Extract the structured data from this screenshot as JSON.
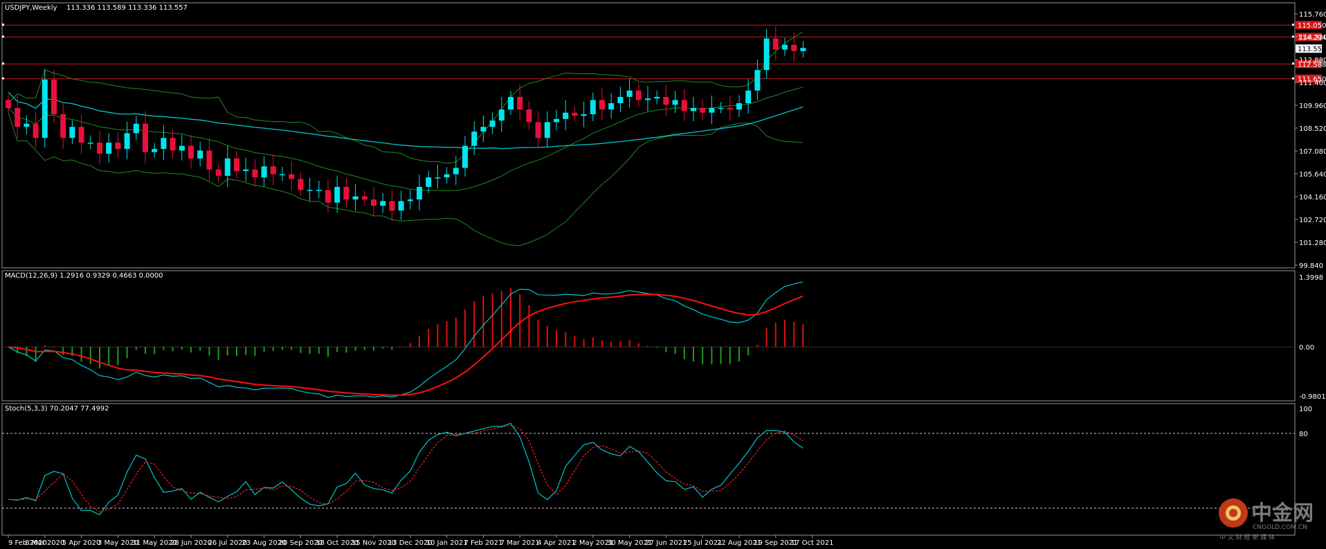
{
  "chart_data": [
    {
      "type": "candlestick",
      "title": "USDJPY,Weekly",
      "ohlc_label": "113.336 113.589 113.336 113.557",
      "ylim": [
        99.84,
        115.76
      ],
      "y_ticks": [
        "115.760",
        "114.320",
        "112.880",
        "111.400",
        "109.960",
        "108.520",
        "107.080",
        "105.640",
        "104.160",
        "102.720",
        "101.280",
        "99.840"
      ],
      "x_ticks": [
        "9 Feb 2020",
        "8 Mar 2020",
        "5 Apr 2020",
        "3 May 2020",
        "31 May 2020",
        "28 Jun 2020",
        "26 Jul 2020",
        "23 Aug 2020",
        "20 Sep 2020",
        "18 Oct 2020",
        "15 Nov 2020",
        "13 Dec 2020",
        "10 Jan 2021",
        "7 Feb 2021",
        "7 Mar 2021",
        "4 Apr 2021",
        "2 May 2021",
        "30 May 2021",
        "27 Jun 2021",
        "25 Jul 2021",
        "22 Aug 2021",
        "19 Sep 2021",
        "17 Oct 2021"
      ],
      "current_price": "113.557",
      "price_tags": [
        "115.050",
        "114.294",
        "112.588",
        "111.650"
      ],
      "colors": {
        "up": "#00e5ee",
        "down": "#e8103c",
        "ma_fast": "#00c8d0",
        "bands": "#1f8c1f",
        "level": "#d01818"
      },
      "closes": [
        109.8,
        108.6,
        108.8,
        107.9,
        111.6,
        109.4,
        107.9,
        108.6,
        107.6,
        107.6,
        106.9,
        107.6,
        107.2,
        108.2,
        108.8,
        107.0,
        107.2,
        107.9,
        107.1,
        107.4,
        106.6,
        107.1,
        105.9,
        105.5,
        106.6,
        105.8,
        105.9,
        105.4,
        106.1,
        105.6,
        105.6,
        105.3,
        104.6,
        104.6,
        104.6,
        103.8,
        104.8,
        104.0,
        104.2,
        104.0,
        103.6,
        103.9,
        103.3,
        103.9,
        104.0,
        104.8,
        105.4,
        105.4,
        105.6,
        106.0,
        107.4,
        108.3,
        108.6,
        109.0,
        109.7,
        110.5,
        109.7,
        108.9,
        107.9,
        108.9,
        109.1,
        109.5,
        109.3,
        109.4,
        110.3,
        109.7,
        110.1,
        110.5,
        110.9,
        110.3,
        110.4,
        110.5,
        110.0,
        110.3,
        109.6,
        109.8,
        109.5,
        109.8,
        109.8,
        109.7,
        110.1,
        110.9,
        112.2,
        114.2,
        113.5,
        113.8,
        113.4,
        113.6
      ]
    },
    {
      "type": "line",
      "title": "MACD(12,26,9) 1.2916 0.9329 0.4663 0.0000",
      "y_ticks": [
        "1.3998",
        "0.00",
        "-0.9801"
      ],
      "ylim": [
        -0.98,
        1.4
      ]
    },
    {
      "type": "line",
      "title": "Stoch(5,3,3) 70.2047 77.4992",
      "y_ticks": [
        "100",
        "80"
      ],
      "ylim": [
        0,
        100
      ]
    }
  ],
  "watermark": {
    "brand": "中金网",
    "url": "CNGOLD.COM.CN",
    "tagline": "中 文 财 经 新 媒 体"
  }
}
